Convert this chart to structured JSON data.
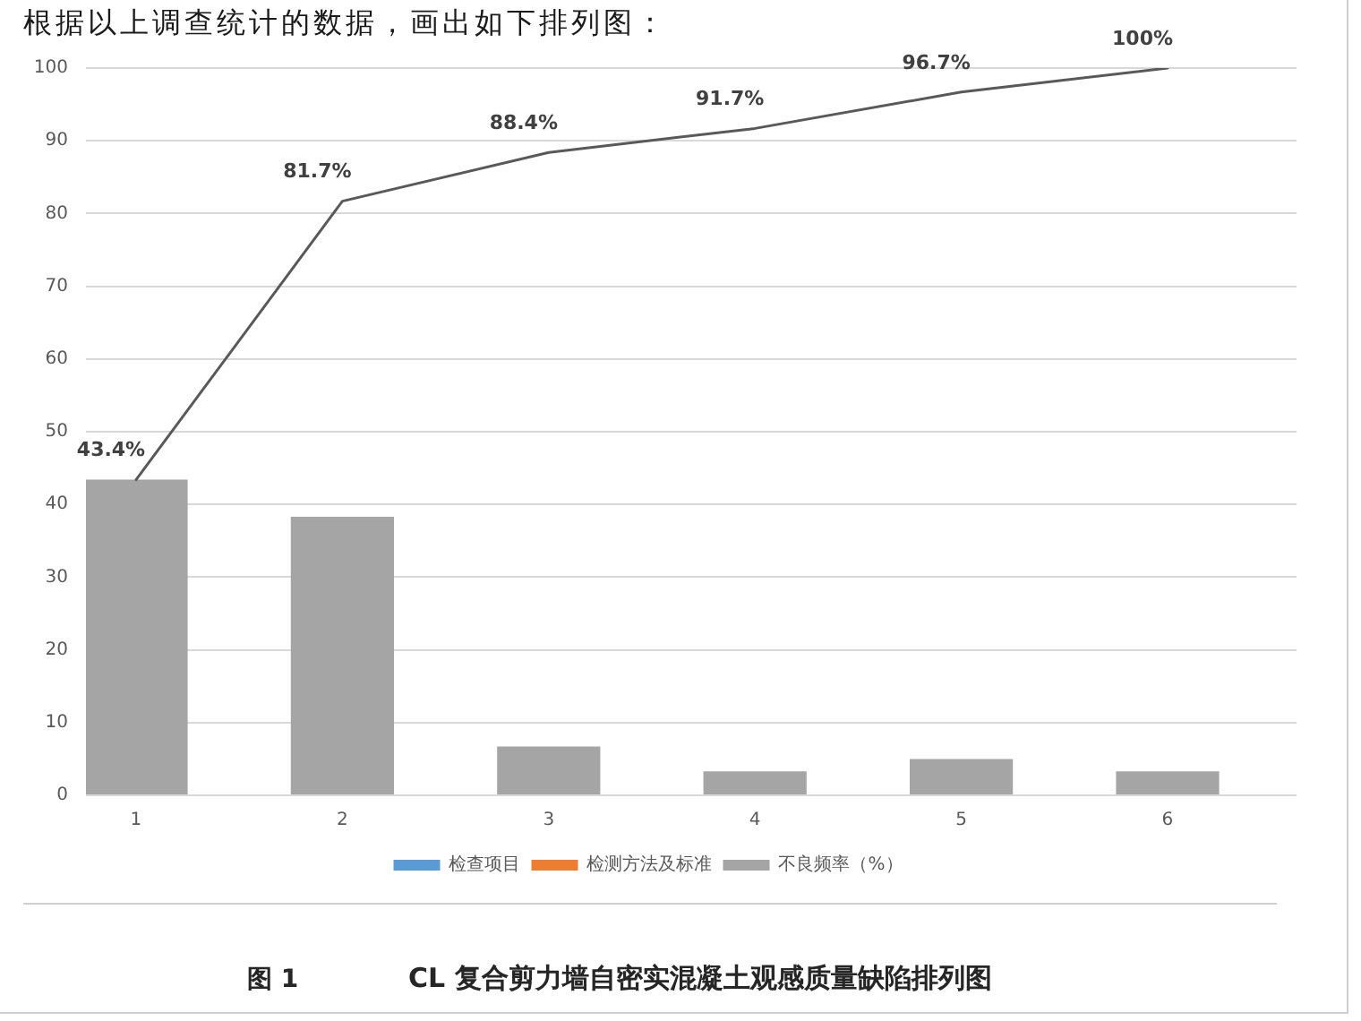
{
  "chart_data": {
    "type": "bar",
    "title": "CL 复合剪力墙自密实混凝土观感质量缺陷排列图",
    "annotations": [
      "根据以上调查统计的数据，画出如下排列图：",
      "图 1"
    ],
    "categories": [
      "1",
      "2",
      "3",
      "4",
      "5",
      "6"
    ],
    "series": [
      {
        "name": "检查项目",
        "color": "#5b9bd5",
        "values": [
          null,
          null,
          null,
          null,
          null,
          null
        ]
      },
      {
        "name": "检测方法及标准",
        "color": "#ed7d31",
        "values": [
          null,
          null,
          null,
          null,
          null,
          null
        ]
      },
      {
        "name": "不良频率（%）",
        "color": "#a5a5a5",
        "values": [
          43.4,
          38.3,
          6.7,
          3.3,
          5.0,
          3.3
        ]
      },
      {
        "type": "line",
        "color": "#595959",
        "values": [
          43.4,
          81.7,
          88.4,
          91.7,
          96.7,
          100
        ],
        "value_labels": [
          "43.4%",
          "81.7%",
          "88.4%",
          "91.7%",
          "96.7%",
          "100%"
        ],
        "marker": "none"
      }
    ],
    "ylim": [
      0,
      100
    ],
    "yticks": [
      0,
      10,
      20,
      30,
      40,
      50,
      60,
      70,
      80,
      90,
      100
    ],
    "grid": "y",
    "legend": "bottom"
  }
}
